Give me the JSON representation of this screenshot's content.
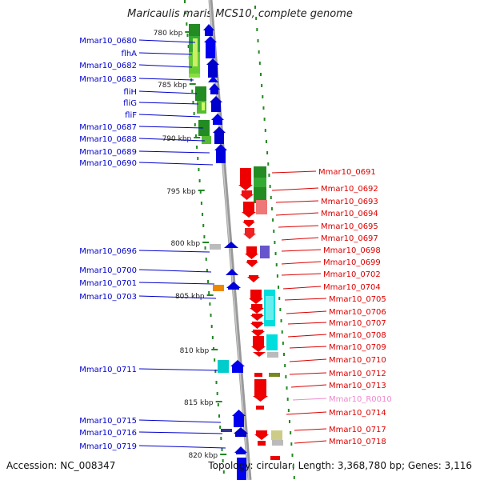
{
  "title": "Maricaulis maris MCS10, complete genome",
  "accession": "Accession: NC_008347",
  "topology": "Topology: circular; Length: 3,368,780 bp; Genes: 3,116",
  "colors": {
    "plus_label": "#0000cc",
    "minus_label": "#dd0000",
    "rna_label": "#ee88cc",
    "tick": "#228822",
    "backbone": "#999999"
  },
  "ticks": [
    "780 kbp",
    "785 kbp",
    "790 kbp",
    "795 kbp",
    "800 kbp",
    "805 kbp",
    "810 kbp",
    "815 kbp",
    "820 kbp"
  ],
  "left_labels": [
    "Mmar10_0680",
    "flhA",
    "Mmar10_0682",
    "Mmar10_0683",
    "fliH",
    "fliG",
    "fliF",
    "Mmar10_0687",
    "Mmar10_0688",
    "Mmar10_0689",
    "Mmar10_0690",
    "Mmar10_0696",
    "Mmar10_0700",
    "Mmar10_0701",
    "Mmar10_0703",
    "Mmar10_0711",
    "Mmar10_0715",
    "Mmar10_0716",
    "Mmar10_0719"
  ],
  "right_labels": [
    "Mmar10_0691",
    "Mmar10_0692",
    "Mmar10_0693",
    "Mmar10_0694",
    "Mmar10_0695",
    "Mmar10_0697",
    "Mmar10_0698",
    "Mmar10_0699",
    "Mmar10_0702",
    "Mmar10_0704",
    "Mmar10_0705",
    "Mmar10_0706",
    "Mmar10_0707",
    "Mmar10_0708",
    "Mmar10_0709",
    "Mmar10_0710",
    "Mmar10_0712",
    "Mmar10_0713",
    "Mmar10_R0010",
    "Mmar10_0714",
    "Mmar10_0717",
    "Mmar10_0718"
  ]
}
